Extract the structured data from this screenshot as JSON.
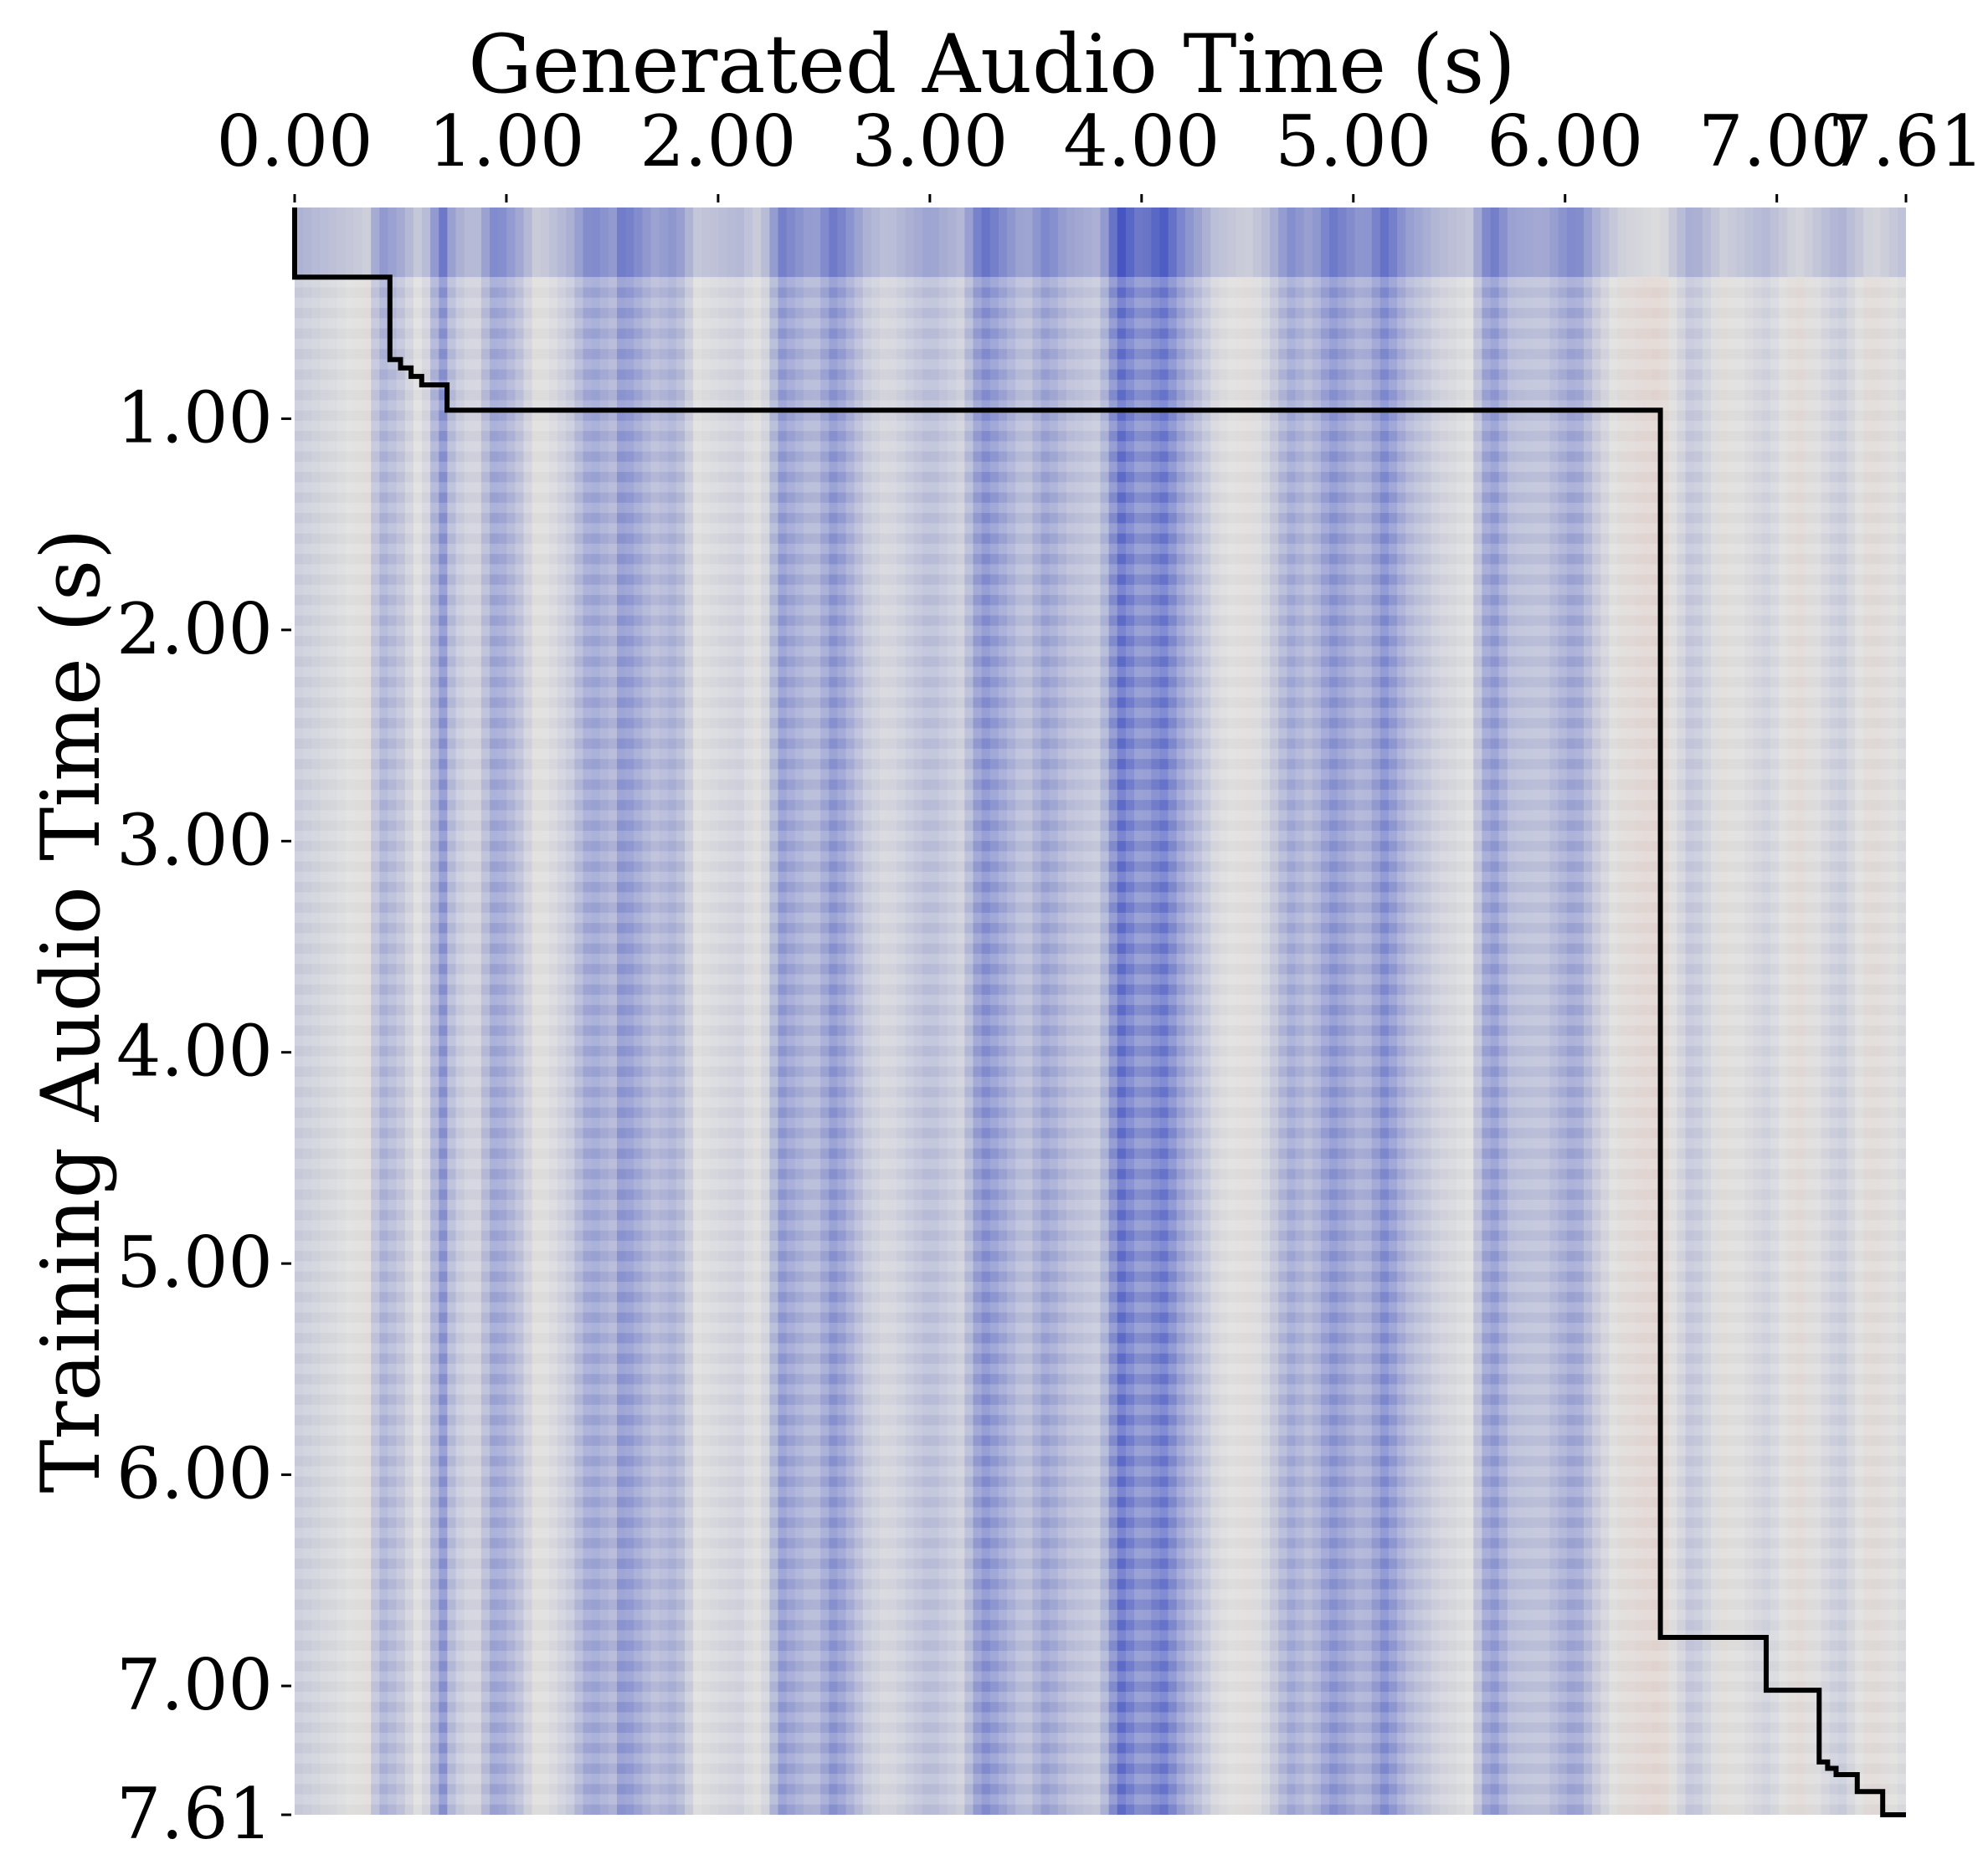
{
  "chart_data": {
    "type": "heatmap",
    "xlabel": "Generated Audio Time (s)",
    "ylabel": "Training Audio Time (s)",
    "x_axis_position": "top",
    "y_axis_inverted": true,
    "xlim": [
      0,
      7.61
    ],
    "ylim": [
      0,
      7.61
    ],
    "x_ticks": [
      {
        "value": 0,
        "label": "0.00"
      },
      {
        "value": 1,
        "label": "1.00"
      },
      {
        "value": 2,
        "label": "2.00"
      },
      {
        "value": 3,
        "label": "3.00"
      },
      {
        "value": 4,
        "label": "4.00"
      },
      {
        "value": 5,
        "label": "5.00"
      },
      {
        "value": 6,
        "label": "6.00"
      },
      {
        "value": 7,
        "label": "7.00"
      },
      {
        "value": 7.61,
        "label": "7.61"
      }
    ],
    "y_ticks": [
      {
        "value": 1,
        "label": "1.00"
      },
      {
        "value": 2,
        "label": "2.00"
      },
      {
        "value": 3,
        "label": "3.00"
      },
      {
        "value": 4,
        "label": "4.00"
      },
      {
        "value": 5,
        "label": "5.00"
      },
      {
        "value": 6,
        "label": "6.00"
      },
      {
        "value": 7,
        "label": "7.00"
      },
      {
        "value": 7.61,
        "label": "7.61"
      }
    ],
    "grid": false,
    "colormap": {
      "name": "coolwarm",
      "low": "#3b4cc0",
      "mid": "#dddddd",
      "high": "#f4987a"
    },
    "column_profile": [
      {
        "x": 0.0,
        "v": -0.15
      },
      {
        "x": 0.35,
        "v": 0.05
      },
      {
        "x": 0.4,
        "v": -0.35
      },
      {
        "x": 0.5,
        "v": -0.2
      },
      {
        "x": 0.6,
        "v": 0.05
      },
      {
        "x": 0.7,
        "v": -0.55
      },
      {
        "x": 0.75,
        "v": -0.2
      },
      {
        "x": 0.85,
        "v": -0.05
      },
      {
        "x": 0.95,
        "v": -0.45
      },
      {
        "x": 1.05,
        "v": -0.25
      },
      {
        "x": 1.15,
        "v": 0.05
      },
      {
        "x": 1.3,
        "v": -0.15
      },
      {
        "x": 1.4,
        "v": -0.45
      },
      {
        "x": 1.5,
        "v": -0.3
      },
      {
        "x": 1.55,
        "v": -0.55
      },
      {
        "x": 1.7,
        "v": -0.25
      },
      {
        "x": 1.8,
        "v": -0.35
      },
      {
        "x": 1.9,
        "v": 0.0
      },
      {
        "x": 2.1,
        "v": -0.1
      },
      {
        "x": 2.2,
        "v": 0.05
      },
      {
        "x": 2.3,
        "v": -0.5
      },
      {
        "x": 2.45,
        "v": -0.25
      },
      {
        "x": 2.55,
        "v": -0.55
      },
      {
        "x": 2.7,
        "v": -0.15
      },
      {
        "x": 2.8,
        "v": -0.05
      },
      {
        "x": 3.0,
        "v": -0.25
      },
      {
        "x": 3.15,
        "v": -0.1
      },
      {
        "x": 3.25,
        "v": -0.6
      },
      {
        "x": 3.35,
        "v": -0.4
      },
      {
        "x": 3.45,
        "v": -0.2
      },
      {
        "x": 3.55,
        "v": -0.45
      },
      {
        "x": 3.65,
        "v": -0.25
      },
      {
        "x": 3.8,
        "v": -0.15
      },
      {
        "x": 3.9,
        "v": -0.8
      },
      {
        "x": 4.0,
        "v": -0.5
      },
      {
        "x": 4.1,
        "v": -0.75
      },
      {
        "x": 4.2,
        "v": -0.4
      },
      {
        "x": 4.35,
        "v": -0.05
      },
      {
        "x": 4.5,
        "v": 0.05
      },
      {
        "x": 4.6,
        "v": -0.1
      },
      {
        "x": 4.7,
        "v": -0.4
      },
      {
        "x": 4.8,
        "v": -0.25
      },
      {
        "x": 4.9,
        "v": -0.55
      },
      {
        "x": 5.05,
        "v": -0.3
      },
      {
        "x": 5.15,
        "v": -0.6
      },
      {
        "x": 5.25,
        "v": -0.3
      },
      {
        "x": 5.4,
        "v": -0.1
      },
      {
        "x": 5.55,
        "v": 0.0
      },
      {
        "x": 5.65,
        "v": -0.55
      },
      {
        "x": 5.75,
        "v": -0.25
      },
      {
        "x": 5.9,
        "v": -0.2
      },
      {
        "x": 6.05,
        "v": -0.45
      },
      {
        "x": 6.15,
        "v": -0.15
      },
      {
        "x": 6.25,
        "v": 0.05
      },
      {
        "x": 6.45,
        "v": 0.15
      },
      {
        "x": 6.6,
        "v": -0.2
      },
      {
        "x": 6.75,
        "v": 0.05
      },
      {
        "x": 6.95,
        "v": -0.1
      },
      {
        "x": 7.1,
        "v": 0.1
      },
      {
        "x": 7.3,
        "v": -0.15
      },
      {
        "x": 7.45,
        "v": 0.1
      },
      {
        "x": 7.61,
        "v": -0.05
      }
    ],
    "top_band": {
      "y_max": 0.33,
      "note_level_shift": -0.15
    },
    "alignment_path": [
      [
        0.0,
        0.0
      ],
      [
        0.0,
        0.33
      ],
      [
        0.45,
        0.33
      ],
      [
        0.45,
        0.72
      ],
      [
        0.5,
        0.72
      ],
      [
        0.5,
        0.76
      ],
      [
        0.55,
        0.76
      ],
      [
        0.55,
        0.8
      ],
      [
        0.6,
        0.8
      ],
      [
        0.6,
        0.84
      ],
      [
        0.72,
        0.84
      ],
      [
        0.72,
        0.96
      ],
      [
        6.45,
        0.96
      ],
      [
        6.45,
        6.77
      ],
      [
        6.95,
        6.77
      ],
      [
        6.95,
        7.02
      ],
      [
        7.2,
        7.02
      ],
      [
        7.2,
        7.36
      ],
      [
        7.24,
        7.36
      ],
      [
        7.24,
        7.39
      ],
      [
        7.28,
        7.39
      ],
      [
        7.28,
        7.42
      ],
      [
        7.38,
        7.42
      ],
      [
        7.38,
        7.5
      ],
      [
        7.5,
        7.5
      ],
      [
        7.5,
        7.61
      ],
      [
        7.61,
        7.61
      ]
    ]
  }
}
